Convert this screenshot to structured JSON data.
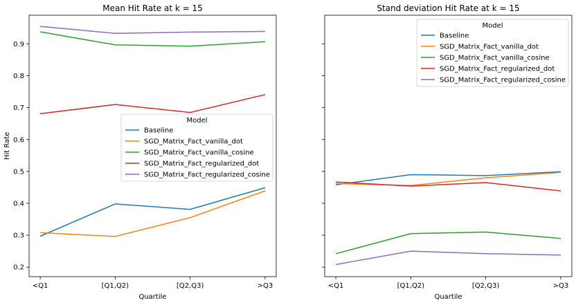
{
  "chart_data": [
    {
      "type": "line",
      "title": "Mean Hit Rate at k = 15",
      "xlabel": "Quartile",
      "ylabel": "Hit Rate",
      "categories": [
        "<Q1",
        "[Q1,Q2)",
        "[Q2,Q3)",
        ">Q3"
      ],
      "ylim": [
        0.17,
        0.99
      ],
      "yticks": [
        "0.2",
        "0.3",
        "0.4",
        "0.5",
        "0.6",
        "0.7",
        "0.8",
        "0.9"
      ],
      "legend": {
        "title": "Model",
        "position": "center-right"
      },
      "series": [
        {
          "name": "Baseline",
          "color": "#1f77b4",
          "values": [
            0.297,
            0.398,
            0.381,
            0.449
          ]
        },
        {
          "name": "SGD_Matrix_Fact_vanilla_dot",
          "color": "#ff7f0e",
          "values": [
            0.308,
            0.296,
            0.355,
            0.439
          ]
        },
        {
          "name": "SGD_Matrix_Fact_vanilla_cosine",
          "color": "#2ca02c",
          "values": [
            0.938,
            0.897,
            0.893,
            0.907
          ]
        },
        {
          "name": "SGD_Matrix_Fact_regularized_dot",
          "color": "#d62728",
          "values": [
            0.681,
            0.71,
            0.685,
            0.741
          ]
        },
        {
          "name": "SGD_Matrix_Fact_regularized_cosine",
          "color": "#9467bd",
          "values": [
            0.955,
            0.933,
            0.937,
            0.939
          ]
        }
      ]
    },
    {
      "type": "line",
      "title": "Stand deviation Hit Rate at k = 15",
      "xlabel": "Quartile",
      "ylabel": "",
      "categories": [
        "<Q1",
        "[Q1,Q2)",
        "[Q2,Q3)",
        ">Q3"
      ],
      "ylim": [
        0.17,
        0.99
      ],
      "yticks": [
        "",
        "",
        "",
        "",
        "",
        "",
        "",
        ""
      ],
      "legend": {
        "title": "Model",
        "position": "upper-right"
      },
      "series": [
        {
          "name": "Baseline",
          "color": "#1f77b4",
          "values": [
            0.458,
            0.49,
            0.487,
            0.499
          ]
        },
        {
          "name": "SGD_Matrix_Fact_vanilla_dot",
          "color": "#ff7f0e",
          "values": [
            0.462,
            0.456,
            0.48,
            0.497
          ]
        },
        {
          "name": "SGD_Matrix_Fact_vanilla_cosine",
          "color": "#2ca02c",
          "values": [
            0.242,
            0.305,
            0.31,
            0.29
          ]
        },
        {
          "name": "SGD_Matrix_Fact_regularized_dot",
          "color": "#d62728",
          "values": [
            0.467,
            0.454,
            0.465,
            0.439
          ]
        },
        {
          "name": "SGD_Matrix_Fact_regularized_cosine",
          "color": "#9467bd",
          "values": [
            0.208,
            0.25,
            0.242,
            0.238
          ]
        }
      ]
    }
  ]
}
